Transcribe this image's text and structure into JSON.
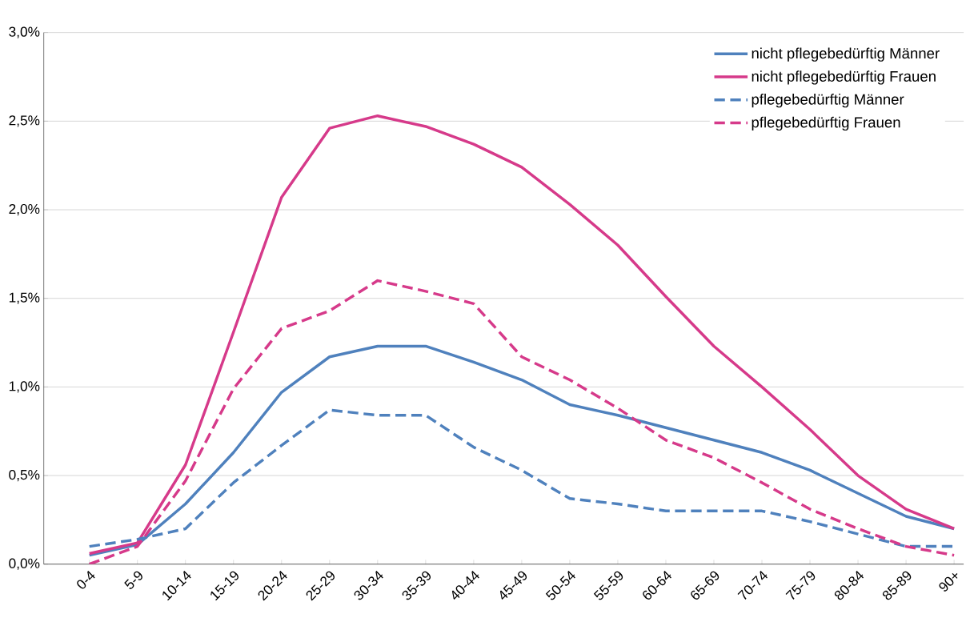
{
  "chart_data": {
    "type": "line",
    "categories": [
      "0-4",
      "5-9",
      "10-14",
      "15-19",
      "20-24",
      "25-29",
      "30-34",
      "35-39",
      "40-44",
      "45-49",
      "50-54",
      "55-59",
      "60-64",
      "65-69",
      "70-74",
      "75-79",
      "80-84",
      "85-89",
      "90+"
    ],
    "series": [
      {
        "name": "nicht pflegebedürftig Männer",
        "color": "#4f81bd",
        "line_style": "solid",
        "values": [
          0.05,
          0.11,
          0.34,
          0.63,
          0.97,
          1.17,
          1.23,
          1.23,
          1.14,
          1.04,
          0.9,
          0.84,
          0.77,
          0.7,
          0.63,
          0.53,
          0.4,
          0.27,
          0.2
        ]
      },
      {
        "name": "nicht pflegebedürftig Frauen",
        "color": "#d63a8a",
        "line_style": "solid",
        "values": [
          0.06,
          0.12,
          0.56,
          1.31,
          2.07,
          2.46,
          2.53,
          2.47,
          2.37,
          2.24,
          2.03,
          1.8,
          1.51,
          1.23,
          1.0,
          0.76,
          0.5,
          0.31,
          0.2
        ]
      },
      {
        "name": "pflegebedürftig Männer",
        "color": "#4f81bd",
        "line_style": "dashed",
        "values": [
          0.1,
          0.14,
          0.2,
          0.46,
          0.67,
          0.87,
          0.84,
          0.84,
          0.66,
          0.53,
          0.37,
          0.34,
          0.3,
          0.3,
          0.3,
          0.24,
          0.17,
          0.1,
          0.1
        ]
      },
      {
        "name": "pflegebedürftig Frauen",
        "color": "#d63a8a",
        "line_style": "dashed",
        "values": [
          0.0,
          0.1,
          0.47,
          0.99,
          1.33,
          1.43,
          1.6,
          1.54,
          1.47,
          1.17,
          1.04,
          0.88,
          0.7,
          0.6,
          0.46,
          0.31,
          0.2,
          0.1,
          0.05
        ]
      }
    ],
    "ylim": [
      0,
      3
    ],
    "yticks": [
      {
        "value": 0,
        "label": "0,0%"
      },
      {
        "value": 0.5,
        "label": "0,5%"
      },
      {
        "value": 1,
        "label": "1,0%"
      },
      {
        "value": 1.5,
        "label": "1,5%"
      },
      {
        "value": 2,
        "label": "2,0%"
      },
      {
        "value": 2.5,
        "label": "2,5%"
      },
      {
        "value": 3,
        "label": "3,0%"
      }
    ],
    "grid": "y",
    "legend": "top right",
    "marker": "none"
  }
}
